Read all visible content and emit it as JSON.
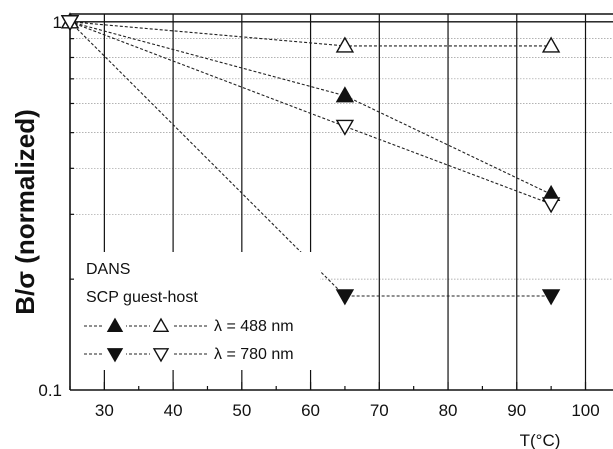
{
  "chart_data": {
    "type": "scatter",
    "xlabel": "T(°C)",
    "ylabel": "B/σ  (normalized)",
    "xlim": [
      25,
      104
    ],
    "ylim": [
      0.1,
      1.05
    ],
    "yscale": "log",
    "grid": true,
    "x_ticks": [
      "30",
      "40",
      "50",
      "60",
      "70",
      "80",
      "90",
      "100"
    ],
    "y_ticks": [
      "0.1",
      "1"
    ],
    "legend_placement": "bottom-left",
    "legend": {
      "line1": "DANS",
      "line2": "SCP  guest-host",
      "entries": [
        "λ = 488 nm",
        "λ = 780 nm"
      ]
    },
    "series": [
      {
        "marker": "triangle-up-filled",
        "x": [
          25,
          65,
          95
        ],
        "y": [
          1.0,
          0.63,
          0.34
        ]
      },
      {
        "marker": "triangle-up-open",
        "x": [
          25,
          65,
          95
        ],
        "y": [
          1.0,
          0.86,
          0.86
        ]
      },
      {
        "marker": "triangle-down-filled",
        "x": [
          25,
          65,
          95
        ],
        "y": [
          1.0,
          0.18,
          0.18
        ]
      },
      {
        "marker": "triangle-down-open",
        "x": [
          25,
          65,
          95
        ],
        "y": [
          1.0,
          0.52,
          0.32
        ]
      }
    ]
  }
}
